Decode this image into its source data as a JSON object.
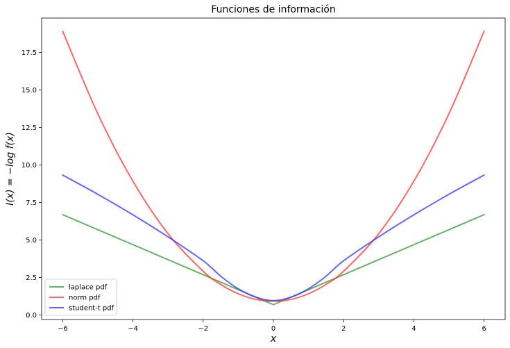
{
  "chart_data": {
    "type": "line",
    "title": "Funciones de información",
    "xlabel": "x",
    "ylabel": "I(x) = −log f(x)",
    "xlim": [
      -6.6,
      6.6
    ],
    "ylim": [
      -0.3,
      19.8
    ],
    "x_ticks": [
      -6,
      -4,
      -2,
      0,
      2,
      4,
      6
    ],
    "x_tick_labels": [
      "−6",
      "−4",
      "−2",
      "0",
      "2",
      "4",
      "6"
    ],
    "y_ticks": [
      0.0,
      2.5,
      5.0,
      7.5,
      10.0,
      12.5,
      15.0,
      17.5
    ],
    "y_tick_labels": [
      "0.0",
      "2.5",
      "5.0",
      "7.5",
      "10.0",
      "12.5",
      "15.0",
      "17.5"
    ],
    "grid": false,
    "legend_position": "lower-left",
    "series": [
      {
        "name": "laplace pdf",
        "color": "#339933",
        "x": [
          -6,
          -5,
          -4,
          -3,
          -2,
          -1,
          0,
          1,
          2,
          3,
          4,
          5,
          6
        ],
        "y": [
          6.69,
          5.69,
          4.69,
          3.69,
          2.69,
          1.69,
          0.69,
          1.69,
          2.69,
          3.69,
          4.69,
          5.69,
          6.69
        ]
      },
      {
        "name": "norm pdf",
        "color": "#ff3333",
        "x": [
          -6,
          -5,
          -4,
          -3,
          -2,
          -1.5,
          -1,
          -0.5,
          0,
          0.5,
          1,
          1.5,
          2,
          3,
          4,
          5,
          6
        ],
        "y": [
          18.92,
          13.42,
          8.92,
          5.42,
          2.92,
          2.04,
          1.42,
          1.04,
          0.92,
          1.04,
          1.42,
          2.04,
          2.92,
          5.42,
          8.92,
          13.42,
          18.92
        ]
      },
      {
        "name": "student-t pdf",
        "color": "#3333ff",
        "x": [
          -6,
          -5,
          -4,
          -3,
          -2,
          -1.5,
          -1,
          -0.5,
          0,
          0.5,
          1,
          1.5,
          2,
          3,
          4,
          5,
          6
        ],
        "y": [
          9.33,
          8.05,
          6.68,
          5.21,
          3.62,
          2.59,
          1.75,
          1.19,
          0.96,
          1.19,
          1.75,
          2.59,
          3.62,
          5.21,
          6.68,
          8.05,
          9.33
        ]
      }
    ]
  }
}
